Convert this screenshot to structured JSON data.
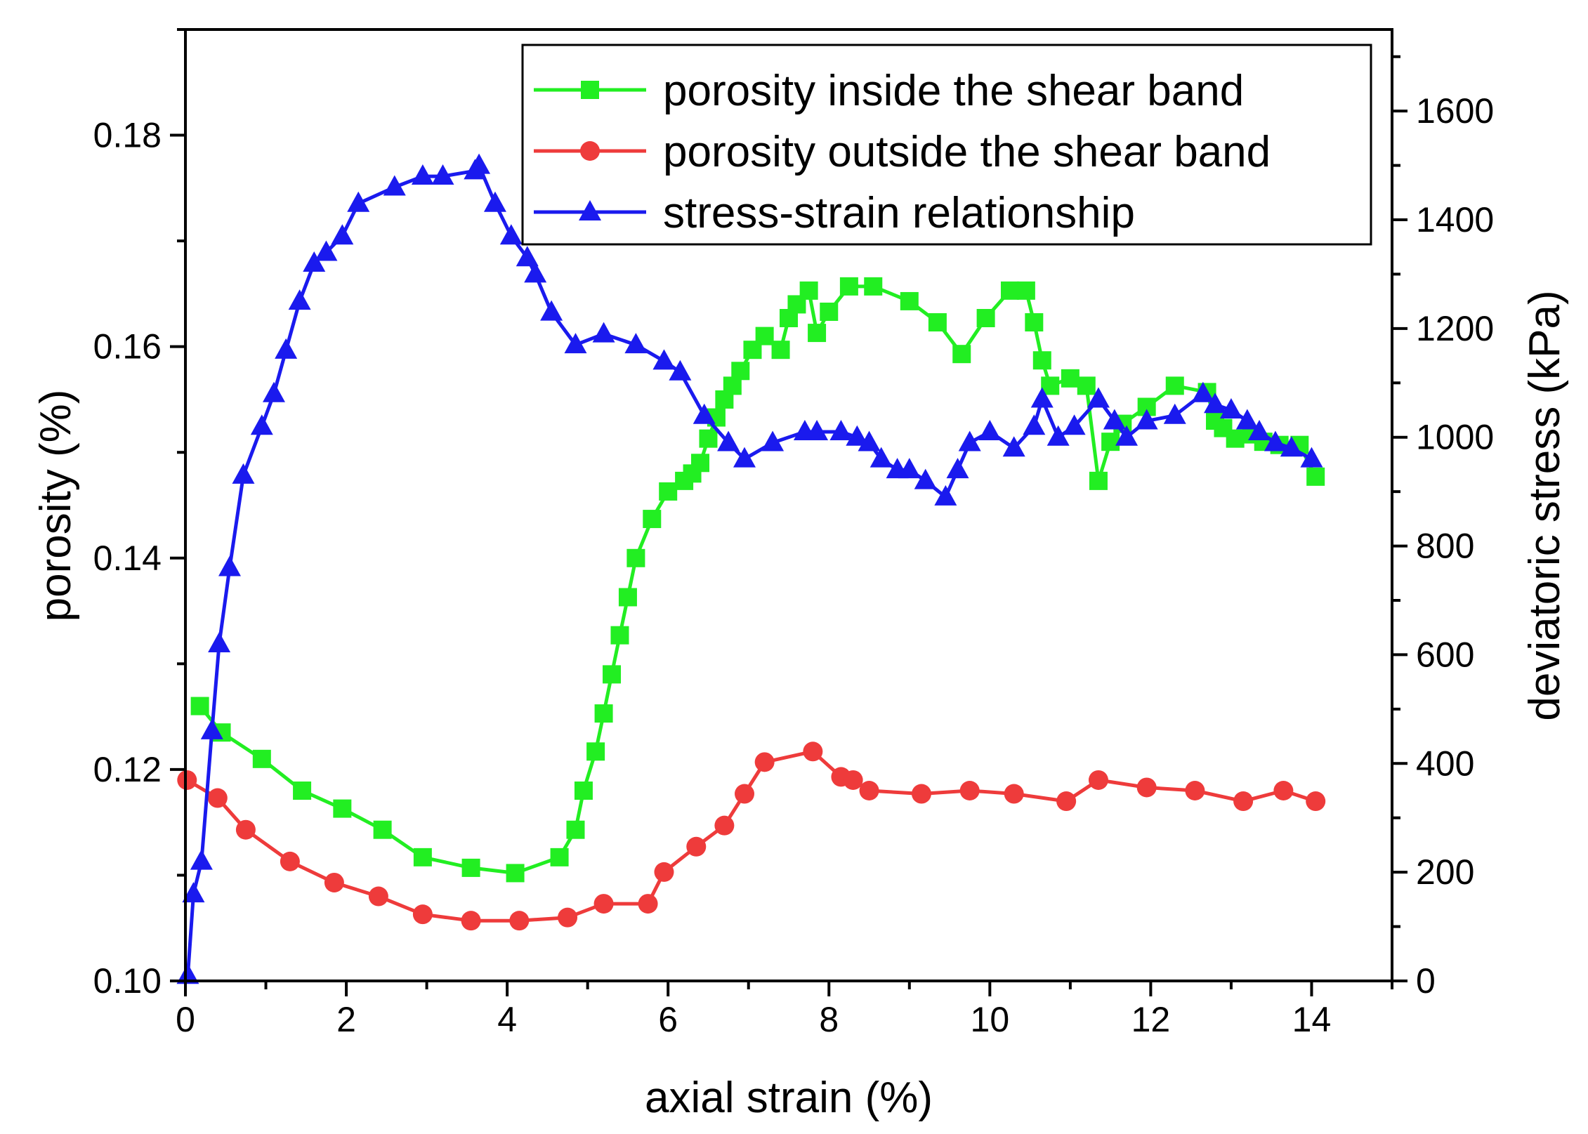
{
  "chart_data": {
    "type": "line",
    "xlabel": "axial strain (%)",
    "ylabel": "porosity (%)",
    "y2label": "deviatoric stress (kPa)",
    "xlim": [
      0,
      15
    ],
    "ylim": [
      0.1,
      0.19
    ],
    "y2lim": [
      0,
      1750
    ],
    "x_ticks": [
      0,
      2,
      4,
      6,
      8,
      10,
      12,
      14
    ],
    "y_ticks": [
      0.1,
      0.12,
      0.14,
      0.16,
      0.18
    ],
    "y2_ticks": [
      0,
      200,
      400,
      600,
      800,
      1000,
      1200,
      1400,
      1600
    ],
    "legend_position": "top-right",
    "colors": {
      "inside": "#22ee22",
      "outside": "#ee3b3b",
      "stress": "#1a1aee"
    },
    "series": [
      {
        "name": "porosity inside the shear band",
        "axis": "left",
        "marker": "square",
        "color": "#22ee22",
        "x": [
          0.18,
          0.45,
          0.95,
          1.45,
          1.95,
          2.45,
          2.95,
          3.55,
          4.1,
          4.65,
          4.85,
          4.95,
          5.1,
          5.2,
          5.3,
          5.4,
          5.5,
          5.6,
          5.8,
          6.0,
          6.2,
          6.3,
          6.4,
          6.5,
          6.6,
          6.7,
          6.8,
          6.9,
          7.05,
          7.2,
          7.4,
          7.5,
          7.6,
          7.75,
          7.85,
          8.0,
          8.25,
          8.55,
          9.0,
          9.35,
          9.65,
          9.95,
          10.25,
          10.45,
          10.55,
          10.65,
          10.75,
          11.0,
          11.2,
          11.35,
          11.5,
          11.65,
          11.95,
          12.3,
          12.7,
          12.8,
          12.9,
          13.05,
          13.25,
          13.4,
          13.6,
          13.85,
          14.05
        ],
        "values": [
          0.126,
          0.1235,
          0.121,
          0.118,
          0.1163,
          0.1143,
          0.1117,
          0.1107,
          0.1102,
          0.1117,
          0.1143,
          0.118,
          0.1217,
          0.1253,
          0.129,
          0.1327,
          0.1363,
          0.14,
          0.1437,
          0.1463,
          0.1473,
          0.148,
          0.149,
          0.1513,
          0.1533,
          0.155,
          0.1563,
          0.1577,
          0.1597,
          0.161,
          0.1597,
          0.1627,
          0.164,
          0.1653,
          0.1613,
          0.1633,
          0.1657,
          0.1657,
          0.1643,
          0.1623,
          0.1593,
          0.1627,
          0.1653,
          0.1653,
          0.1623,
          0.1587,
          0.1563,
          0.157,
          0.1563,
          0.1473,
          0.151,
          0.1527,
          0.1543,
          0.1563,
          0.1557,
          0.153,
          0.1523,
          0.1513,
          0.1517,
          0.151,
          0.1507,
          0.1507,
          0.1477
        ]
      },
      {
        "name": "porosity outside the shear band",
        "axis": "left",
        "marker": "circle",
        "color": "#ee3b3b",
        "x": [
          0.02,
          0.4,
          0.75,
          1.3,
          1.85,
          2.4,
          2.95,
          3.55,
          4.15,
          4.75,
          5.2,
          5.75,
          5.95,
          6.35,
          6.7,
          6.95,
          7.2,
          7.8,
          8.15,
          8.3,
          8.5,
          9.15,
          9.75,
          10.3,
          10.95,
          11.35,
          11.95,
          12.55,
          13.15,
          13.65,
          14.05
        ],
        "values": [
          0.119,
          0.1173,
          0.1143,
          0.1113,
          0.1093,
          0.108,
          0.1063,
          0.1057,
          0.1057,
          0.106,
          0.1073,
          0.1073,
          0.1103,
          0.1127,
          0.1147,
          0.1177,
          0.1207,
          0.1217,
          0.1193,
          0.119,
          0.118,
          0.1177,
          0.118,
          0.1177,
          0.117,
          0.119,
          0.1183,
          0.118,
          0.117,
          0.118,
          0.117
        ]
      },
      {
        "name": "stress-strain relationship",
        "axis": "right",
        "marker": "triangle",
        "color": "#1a1aee",
        "x": [
          0.03,
          0.1,
          0.2,
          0.33,
          0.42,
          0.55,
          0.72,
          0.95,
          1.1,
          1.25,
          1.42,
          1.6,
          1.75,
          1.95,
          2.15,
          2.6,
          2.95,
          3.2,
          3.6,
          3.65,
          3.85,
          4.05,
          4.25,
          4.35,
          4.55,
          4.85,
          5.2,
          5.6,
          5.95,
          6.15,
          6.45,
          6.75,
          6.95,
          7.3,
          7.7,
          7.85,
          8.15,
          8.35,
          8.5,
          8.65,
          8.85,
          9.0,
          9.2,
          9.45,
          9.6,
          9.75,
          10.0,
          10.3,
          10.55,
          10.65,
          10.85,
          11.05,
          11.35,
          11.55,
          11.7,
          11.95,
          12.3,
          12.65,
          12.8,
          13.0,
          13.2,
          13.35,
          13.55,
          13.75,
          14.0
        ],
        "values": [
          10,
          160,
          220,
          460,
          620,
          760,
          930,
          1020,
          1080,
          1160,
          1250,
          1320,
          1340,
          1370,
          1430,
          1460,
          1480,
          1480,
          1490,
          1500,
          1430,
          1370,
          1330,
          1300,
          1230,
          1170,
          1190,
          1170,
          1140,
          1120,
          1040,
          990,
          960,
          990,
          1010,
          1010,
          1010,
          1000,
          990,
          960,
          940,
          940,
          920,
          890,
          940,
          990,
          1010,
          980,
          1020,
          1070,
          1000,
          1020,
          1070,
          1030,
          1000,
          1030,
          1040,
          1080,
          1060,
          1050,
          1030,
          1010,
          990,
          980,
          960
        ]
      }
    ]
  }
}
